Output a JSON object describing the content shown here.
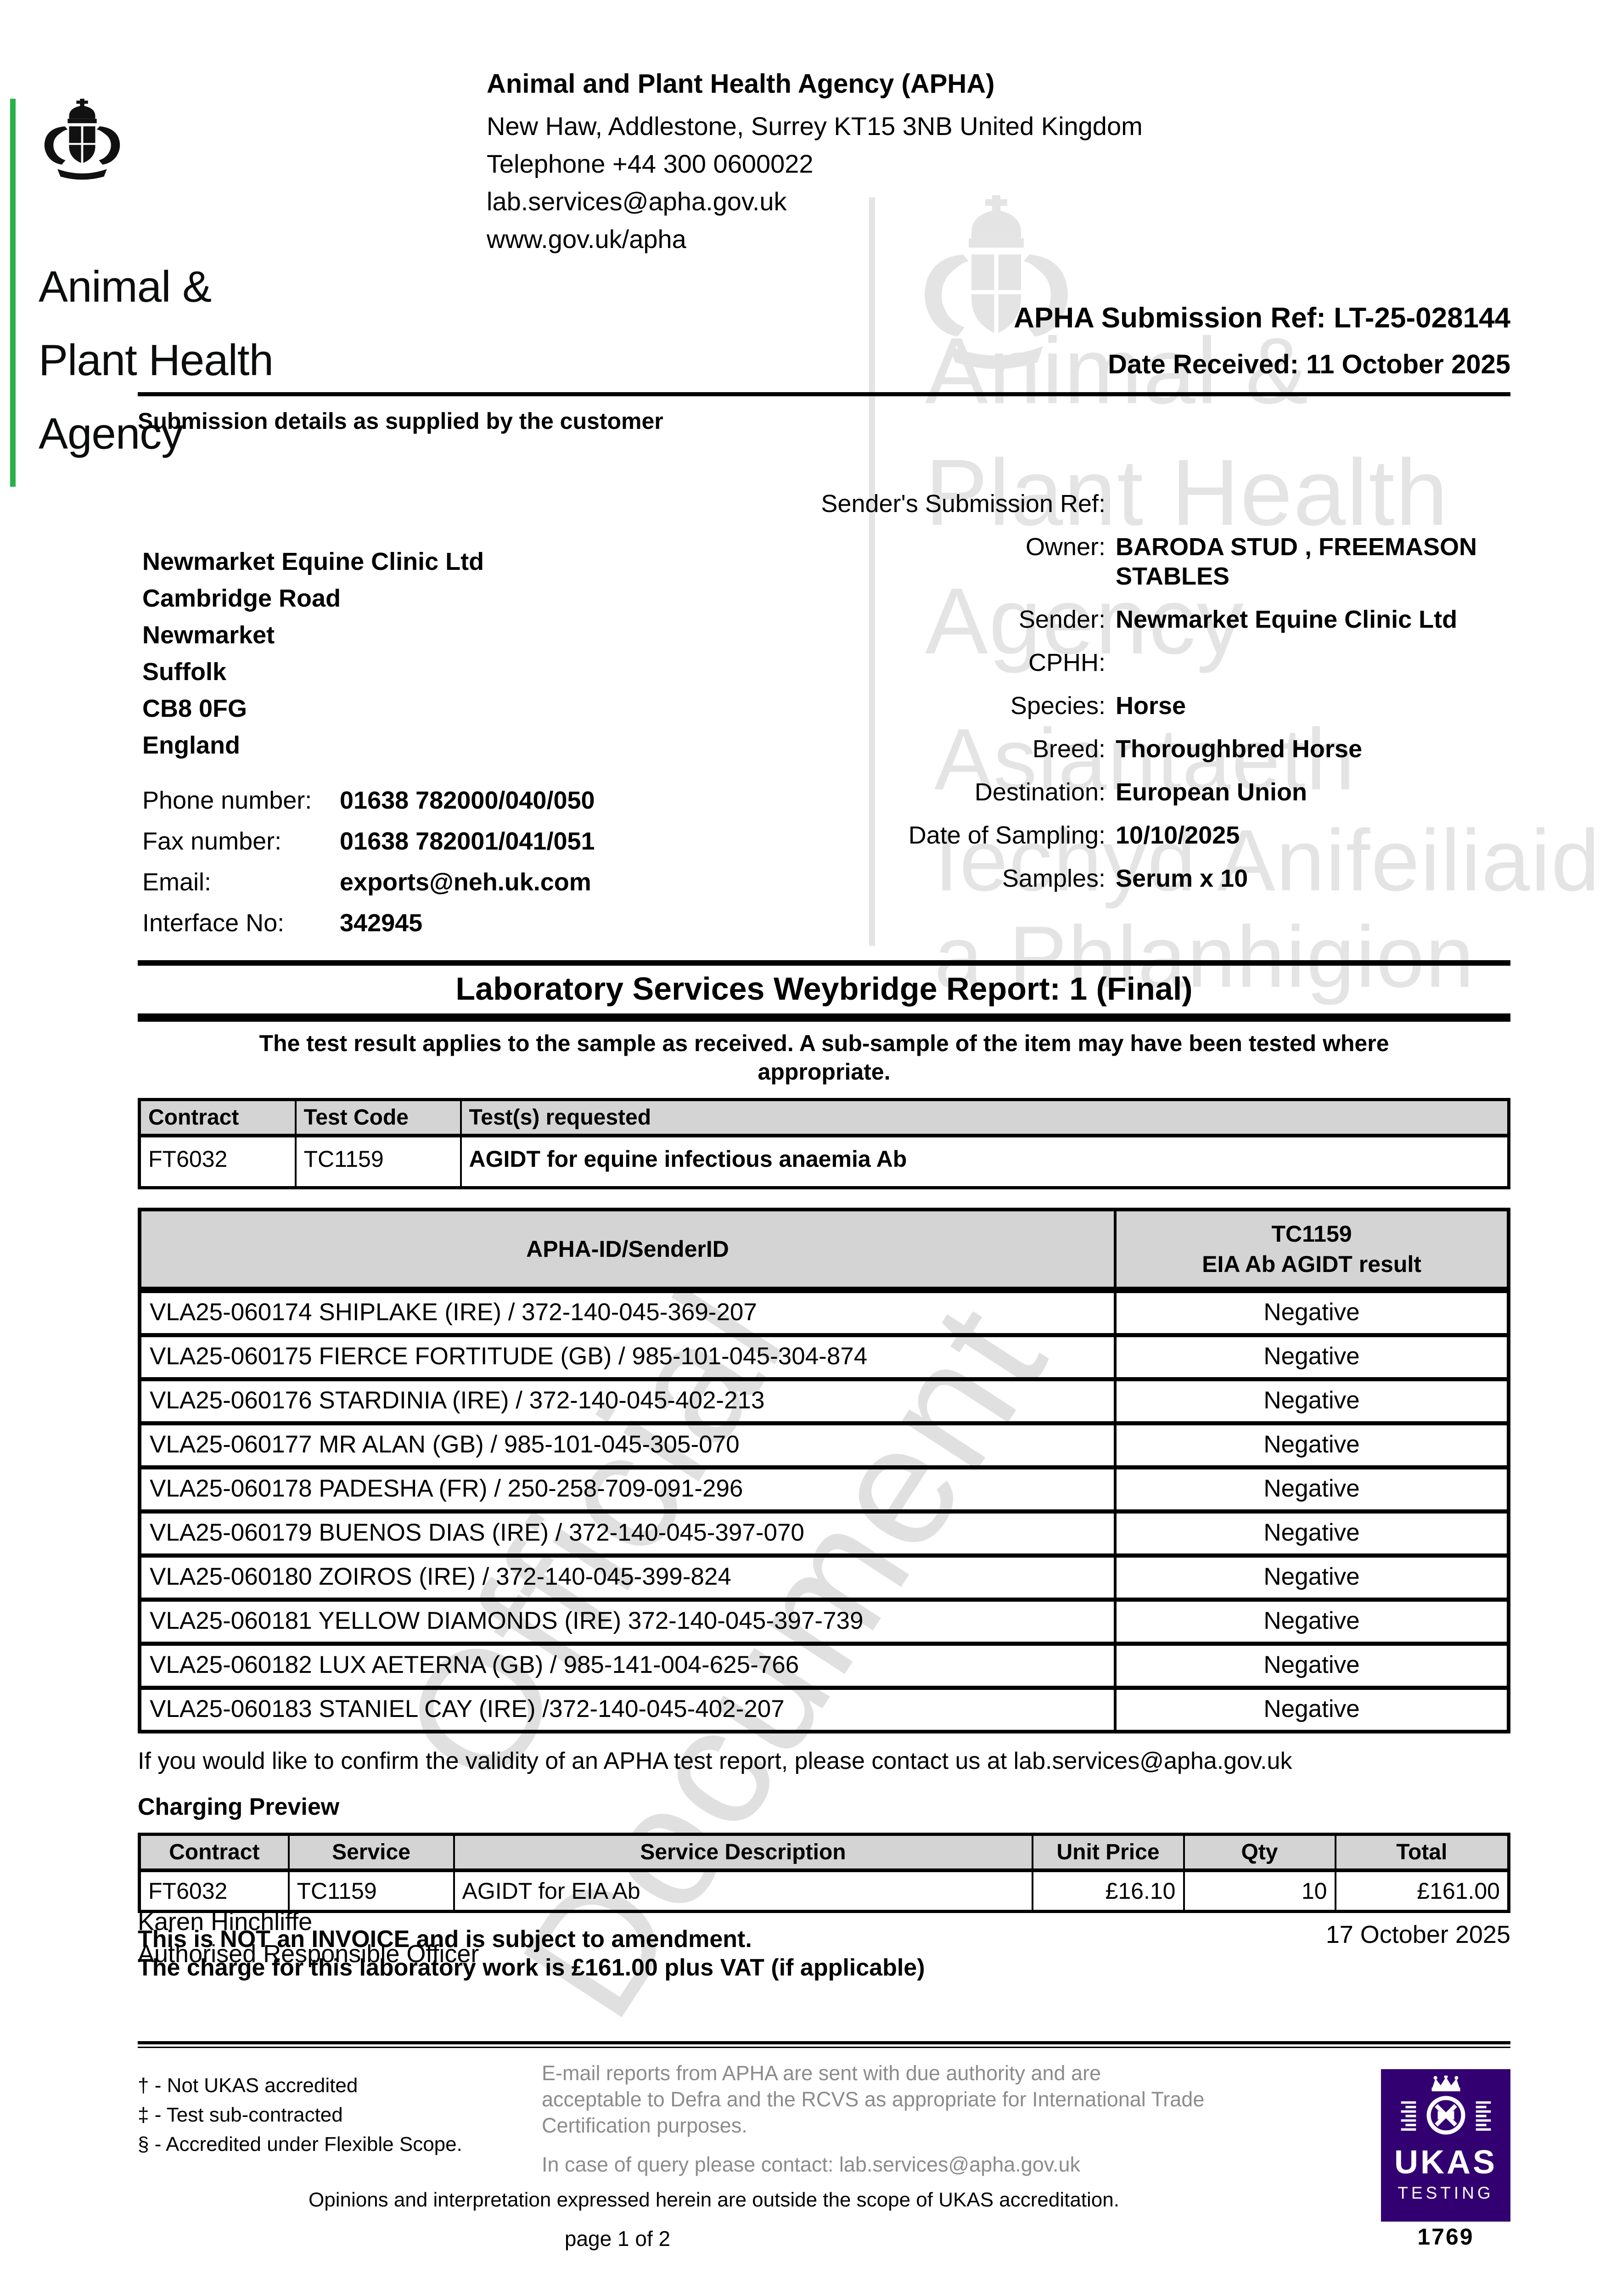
{
  "logo": {
    "lines": [
      "Animal &",
      "Plant Health",
      "Agency"
    ]
  },
  "header": {
    "org_name": "Animal and Plant Health Agency (APHA)",
    "address_line": "New Haw, Addlestone, Surrey KT15 3NB United Kingdom",
    "phone_line": "Telephone +44 300 0600022",
    "email_line": "lab.services@apha.gov.uk",
    "web_line": "www.gov.uk/apha",
    "submission_ref": {
      "label": "APHA Submission Ref:",
      "value": "LT-25-028144"
    },
    "date_received": {
      "label": "Date Received:",
      "value": "11 October 2025"
    }
  },
  "submission": {
    "heading": "Submission details as supplied by the customer",
    "customer_address": [
      "Newmarket Equine Clinic Ltd",
      "Cambridge Road",
      "Newmarket",
      "Suffolk",
      "CB8 0FG",
      "England"
    ],
    "contact_rows": [
      {
        "label": "Phone number:",
        "value": "01638 782000/040/050"
      },
      {
        "label": "Fax number:",
        "value": "01638 782001/041/051"
      },
      {
        "label": "Email:",
        "value": "exports@neh.uk.com"
      },
      {
        "label": "Interface No:",
        "value": "342945"
      }
    ],
    "detail_rows": [
      {
        "label": "Sender's Submission Ref:",
        "value": ""
      },
      {
        "label": "Owner:",
        "value": "BARODA STUD , FREEMASON STABLES"
      },
      {
        "label": "Sender:",
        "value": "Newmarket Equine Clinic Ltd"
      },
      {
        "label": "CPHH:",
        "value": ""
      },
      {
        "label": "Species:",
        "value": "Horse"
      },
      {
        "label": "Breed:",
        "value": "Thoroughbred Horse"
      },
      {
        "label": "Destination:",
        "value": "European Union"
      },
      {
        "label": "Date of Sampling:",
        "value": "10/10/2025"
      },
      {
        "label": "Samples:",
        "value": "Serum x 10"
      }
    ]
  },
  "report": {
    "title": "Laboratory Services Weybridge Report: 1 (Final)",
    "note": "The test result applies to the sample as received. A sub-sample of the item may have been tested where\nappropriate.",
    "request_table": {
      "headers": [
        "Contract",
        "Test Code",
        "Test(s) requested"
      ],
      "row": [
        "FT6032",
        "TC1159",
        "AGIDT for equine infectious anaemia Ab"
      ]
    },
    "results_table": {
      "id_header": "APHA-ID/SenderID",
      "result_header_line1": "TC1159",
      "result_header_line2": "EIA Ab AGIDT result",
      "rows": [
        {
          "id": "VLA25-060174 SHIPLAKE (IRE) / 372-140-045-369-207",
          "result": "Negative"
        },
        {
          "id": "VLA25-060175 FIERCE FORTITUDE (GB) / 985-101-045-304-874",
          "result": "Negative"
        },
        {
          "id": "VLA25-060176 STARDINIA (IRE) / 372-140-045-402-213",
          "result": "Negative"
        },
        {
          "id": "VLA25-060177 MR ALAN (GB) / 985-101-045-305-070",
          "result": "Negative"
        },
        {
          "id": "VLA25-060178 PADESHA (FR) / 250-258-709-091-296",
          "result": "Negative"
        },
        {
          "id": "VLA25-060179 BUENOS DIAS (IRE) / 372-140-045-397-070",
          "result": "Negative"
        },
        {
          "id": "VLA25-060180 ZOIROS (IRE) / 372-140-045-399-824",
          "result": "Negative"
        },
        {
          "id": "VLA25-060181 YELLOW DIAMONDS (IRE) 372-140-045-397-739",
          "result": "Negative"
        },
        {
          "id": "VLA25-060182 LUX AETERNA (GB) / 985-141-004-625-766",
          "result": "Negative"
        },
        {
          "id": "VLA25-060183 STANIEL CAY (IRE) /372-140-045-402-207",
          "result": "Negative"
        }
      ]
    },
    "validity_note": "If you would like to confirm the validity of an APHA test report, please contact us at lab.services@apha.gov.uk"
  },
  "charging": {
    "heading": "Charging Preview",
    "headers": [
      "Contract",
      "Service",
      "Service Description",
      "Unit Price",
      "Qty",
      "Total"
    ],
    "row": [
      "FT6032",
      "TC1159",
      "AGIDT for EIA Ab",
      "£16.10",
      "10",
      "£161.00"
    ],
    "not_invoice": "This is NOT an INVOICE and is subject to amendment.",
    "charge_note": "The charge for this laboratory work is £161.00 plus VAT (if applicable)"
  },
  "signature": {
    "name": "Karen Hinchliffe",
    "role": "Authorised Responsible Officer",
    "date": "17 October 2025"
  },
  "footer": {
    "accreditation_notes": [
      "† - Not UKAS accredited",
      "‡ - Test sub-contracted",
      "§ - Accredited under Flexible Scope."
    ],
    "email_paragraph": "E-mail reports from APHA are sent with due authority and are\nacceptable to Defra and the RCVS as appropriate for International Trade\nCertification purposes.",
    "query_line": "In case of query please contact: lab.services@apha.gov.uk",
    "opinions_note": "Opinions and interpretation expressed herein are outside the scope of UKAS accreditation.",
    "page_label": "page 1 of 2",
    "ukas": {
      "name": "UKAS",
      "type": "TESTING",
      "number": "1769"
    }
  },
  "watermark": {
    "logo_lines": [
      "Animal &",
      "Plant Health",
      "Agency",
      "Asiantaeth",
      "Iechyd Anifeiliaid",
      "a Phlanhigion"
    ],
    "diagonal": [
      "Official",
      "Document"
    ]
  },
  "colors": {
    "green": "#2ab04a",
    "ukas_purple": "#330072",
    "header_gray": "#d4d4d4",
    "watermark_gray": "#e4e4e4",
    "diagonal_gray": "#e0e0e0",
    "footer_gray": "#8c8c8c"
  }
}
